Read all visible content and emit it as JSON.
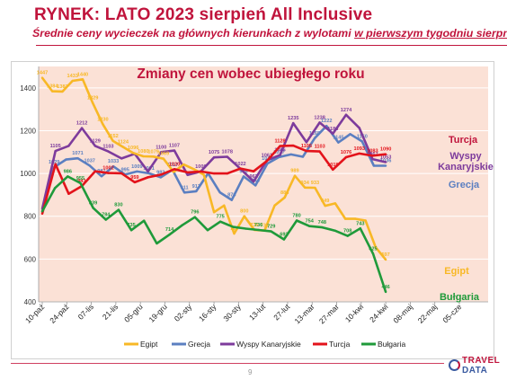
{
  "header": {
    "title": "RYNEK: LATO 2023 sierpień All Inclusive",
    "subtitle_main": "Średnie ceny wycieczek na głównych kierunkach z wylotami ",
    "subtitle_underlined": "w pierwszym tygodniu sierpnia"
  },
  "footer": {
    "page_number": "9",
    "logo_line1": "TRAVEL",
    "logo_line2": "DATA"
  },
  "colors": {
    "brand": "#c0143c",
    "plot_background": "#fbe1d6",
    "Egipt": "#f8b826",
    "Grecja": "#5b7fc1",
    "Wyspy Kanaryjskie": "#7d3b9c",
    "Turcja": "#e3131b",
    "Bułgaria": "#1f9a3a"
  },
  "chart_data": {
    "type": "line",
    "title": "Zmiany cen wobec ubiegłego roku",
    "ylim": [
      400,
      1500
    ],
    "yticks": [
      400,
      600,
      800,
      1000,
      1200,
      1400
    ],
    "grid": true,
    "legend_position": "bottom",
    "x_tick_labels": [
      "10-paź",
      "24-paź",
      "07-lis",
      "21-lis",
      "05-gru",
      "19-gru",
      "02-sty",
      "16-sty",
      "30-sty",
      "13-lut",
      "27-lut",
      "13-mar",
      "27-mar",
      "10-kwi",
      "24-kwi",
      "08-maj",
      "22-maj",
      "05-cze"
    ],
    "series": [
      {
        "name": "Egipt",
        "values": [
          1447,
          1384,
          1383,
          1433,
          1440,
          1329,
          1230,
          1152,
          1124,
          1096,
          1080,
          1079,
          1069,
          1007,
          1042,
          1020,
          994,
          819,
          850,
          719,
          800,
          736,
          733,
          850,
          888,
          989,
          934,
          933,
          849,
          860,
          788,
          788,
          780,
          655,
          597
        ],
        "labels": {
          "0": "1447",
          "1": "1384",
          "2": "1383",
          "3": "1433",
          "4": "1440",
          "5": "1329",
          "6": "1230",
          "7": "1152",
          "8": "1124",
          "9": "1096",
          "10": "1080",
          "11": "1079",
          "12": "1069",
          "19": "719",
          "20": "800",
          "21": "736",
          "22": "733",
          "24": "888",
          "25": "989",
          "26": "934",
          "27": "933",
          "28": "849",
          "34": "597"
        }
      },
      {
        "name": "Grecja",
        "values": [
          820,
          1029,
          1065,
          1071,
          1037,
          987,
          1033,
          995,
          1009,
          1001,
          982,
          1017,
          911,
          917,
          1001,
          912,
          876,
          986,
          944,
          1046,
          1077,
          1089,
          1078,
          1165,
          1222,
          1145,
          1184,
          1150,
          1036,
          1036
        ],
        "labels": {
          "1": "1029",
          "3": "1071",
          "4": "1037",
          "5": "987",
          "6": "1033",
          "7": "995",
          "8": "1009",
          "9": "1001",
          "10": "982",
          "11": "1017",
          "12": "911",
          "13": "917",
          "16": "876",
          "17": "986",
          "18": "944",
          "19": "1046",
          "20": "1077",
          "23": "1165",
          "24": "1222",
          "25": "1145",
          "27": "1150",
          "29": "1036"
        }
      },
      {
        "name": "Wyspy Kanaryjskie",
        "values": [
          835,
          1105,
          1129,
          1212,
          1129,
          1103,
          1070,
          1092,
          1009,
          1100,
          1107,
          993,
          1009,
          1075,
          1078,
          1022,
          962,
          1061,
          1086,
          1235,
          1146,
          1238,
          1186,
          1274,
          1213,
          1067,
          1053
        ],
        "labels": {
          "1": "1105",
          "3": "1212",
          "4": "1129",
          "5": "1103",
          "9": "1100",
          "10": "1107",
          "12": "1009",
          "13": "1075",
          "14": "1078",
          "15": "1022",
          "16": "962",
          "17": "1061",
          "18": "1086",
          "19": "1235",
          "21": "1238",
          "22": "1186",
          "23": "1274",
          "25": "1067",
          "26": "1053"
        }
      },
      {
        "name": "Turcja",
        "values": [
          812,
          1043,
          905,
          941,
          1010,
          1002,
          1001,
          959,
          982,
          995,
          1020,
          1005,
          1009,
          1000,
          1000,
          1023,
          1010,
          1058,
          1128,
          1130,
          1105,
          1103,
          1018,
          1076,
          1093,
          1083,
          1090
        ],
        "labels": {
          "3": "941",
          "5": "1002",
          "7": "959",
          "10": "1020",
          "18": "1128",
          "20": "1105",
          "21": "1103",
          "22": "1018",
          "23": "1076",
          "24": "1093",
          "25": "1083",
          "26": "1090"
        }
      },
      {
        "name": "Bułgaria",
        "values": [
          823,
          932,
          986,
          955,
          839,
          784,
          830,
          735,
          779,
          673,
          714,
          758,
          796,
          735,
          775,
          750,
          742,
          736,
          729,
          692,
          780,
          754,
          748,
          733,
          708,
          743,
          625,
          446
        ],
        "labels": {
          "2": "986",
          "3": "955",
          "4": "839",
          "5": "784",
          "6": "830",
          "7": "735",
          "10": "714",
          "12": "796",
          "14": "775",
          "17": "736",
          "18": "729",
          "19": "692",
          "20": "780",
          "21": "754",
          "22": "748",
          "24": "708",
          "25": "743",
          "26": "625",
          "27": "446"
        }
      }
    ],
    "end_labels": {
      "Turcja": "Turcja",
      "Wyspy Kanaryjskie": "Wyspy Kanaryjskie",
      "Grecja": "Grecja",
      "Egipt": "Egipt",
      "Bułgaria": "Bułgaria"
    }
  }
}
